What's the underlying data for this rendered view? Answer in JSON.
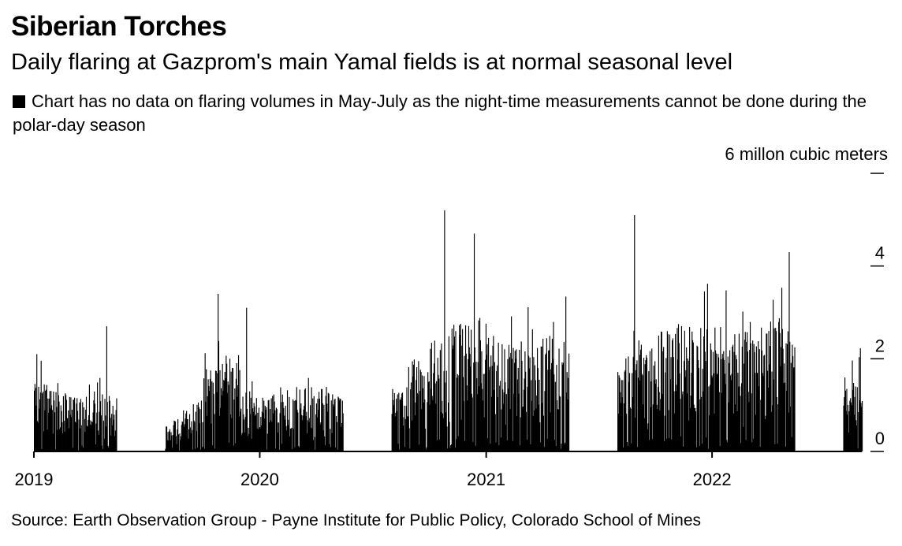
{
  "title": "Siberian Torches",
  "subtitle": "Daily flaring at Gazprom's main Yamal fields is at normal seasonal level",
  "note": "Chart has no data on flaring volumes in May-July as the night-time measurements cannot be done during the polar-day season",
  "source": "Source: Earth Observation Group - Payne Institute for Public Policy, Colorado School of Mines",
  "chart_data": {
    "type": "bar",
    "title": "Siberian Torches",
    "ylabel": "6 millon cubic meters",
    "ylim": [
      0,
      6
    ],
    "y_ticks": [
      {
        "value": 0,
        "label": "0"
      },
      {
        "value": 2,
        "label": "2"
      },
      {
        "value": 4,
        "label": "4"
      },
      {
        "value": 6,
        "label": ""
      }
    ],
    "x_ticks": [
      "2019",
      "2020",
      "2021",
      "2022"
    ],
    "x_range": [
      "2019-01-01",
      "2022-08-31"
    ],
    "grid": false,
    "bar_color": "#000000",
    "gap_periods": [
      {
        "start": "2019-05-15",
        "end": "2019-07-31"
      },
      {
        "start": "2020-05-15",
        "end": "2020-07-31"
      },
      {
        "start": "2021-05-15",
        "end": "2021-07-31"
      },
      {
        "start": "2022-05-15",
        "end": "2022-07-31"
      }
    ],
    "monthly_typical_max": [
      {
        "month": "2019-01",
        "value": 1.5
      },
      {
        "month": "2019-02",
        "value": 1.3
      },
      {
        "month": "2019-03",
        "value": 1.2
      },
      {
        "month": "2019-04",
        "value": 1.3
      },
      {
        "month": "2019-05",
        "value": 1.2
      },
      {
        "month": "2019-08",
        "value": 0.7
      },
      {
        "month": "2019-09",
        "value": 1.1
      },
      {
        "month": "2019-10",
        "value": 1.8
      },
      {
        "month": "2019-11",
        "value": 2.2
      },
      {
        "month": "2019-12",
        "value": 1.3
      },
      {
        "month": "2020-01",
        "value": 1.3
      },
      {
        "month": "2020-02",
        "value": 1.4
      },
      {
        "month": "2020-03",
        "value": 1.2
      },
      {
        "month": "2020-04",
        "value": 1.4
      },
      {
        "month": "2020-05",
        "value": 1.2
      },
      {
        "month": "2020-08",
        "value": 1.4
      },
      {
        "month": "2020-09",
        "value": 2.0
      },
      {
        "month": "2020-10",
        "value": 2.4
      },
      {
        "month": "2020-11",
        "value": 2.8
      },
      {
        "month": "2020-12",
        "value": 2.9
      },
      {
        "month": "2021-01",
        "value": 2.5
      },
      {
        "month": "2021-02",
        "value": 2.4
      },
      {
        "month": "2021-03",
        "value": 2.3
      },
      {
        "month": "2021-04",
        "value": 2.5
      },
      {
        "month": "2021-05",
        "value": 2.4
      },
      {
        "month": "2021-08",
        "value": 2.1
      },
      {
        "month": "2021-09",
        "value": 2.4
      },
      {
        "month": "2021-10",
        "value": 2.6
      },
      {
        "month": "2021-11",
        "value": 2.8
      },
      {
        "month": "2021-12",
        "value": 2.7
      },
      {
        "month": "2022-01",
        "value": 2.7
      },
      {
        "month": "2022-02",
        "value": 2.6
      },
      {
        "month": "2022-03",
        "value": 2.8
      },
      {
        "month": "2022-04",
        "value": 2.9
      },
      {
        "month": "2022-05",
        "value": 2.6
      },
      {
        "month": "2022-08",
        "value": 1.6
      }
    ],
    "notable_peaks": [
      {
        "date": "2019-01-05",
        "value": 2.1
      },
      {
        "date": "2019-04-28",
        "value": 2.7
      },
      {
        "date": "2019-10-25",
        "value": 3.4
      },
      {
        "date": "2019-12-10",
        "value": 3.1
      },
      {
        "date": "2020-10-25",
        "value": 5.2
      },
      {
        "date": "2020-12-12",
        "value": 4.7
      },
      {
        "date": "2021-08-28",
        "value": 5.1
      },
      {
        "date": "2022-05-05",
        "value": 4.3
      }
    ]
  }
}
